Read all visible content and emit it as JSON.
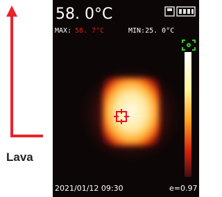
{
  "screen": {
    "temperature": "58. 0°C",
    "max_label": "MAX:",
    "max_value": "58. 7°C",
    "min": "MIN:25. 0°C",
    "timestamp": "2021/01/12 09:30",
    "emissivity": "e=0.97"
  },
  "annotation": {
    "label": "Lava"
  }
}
